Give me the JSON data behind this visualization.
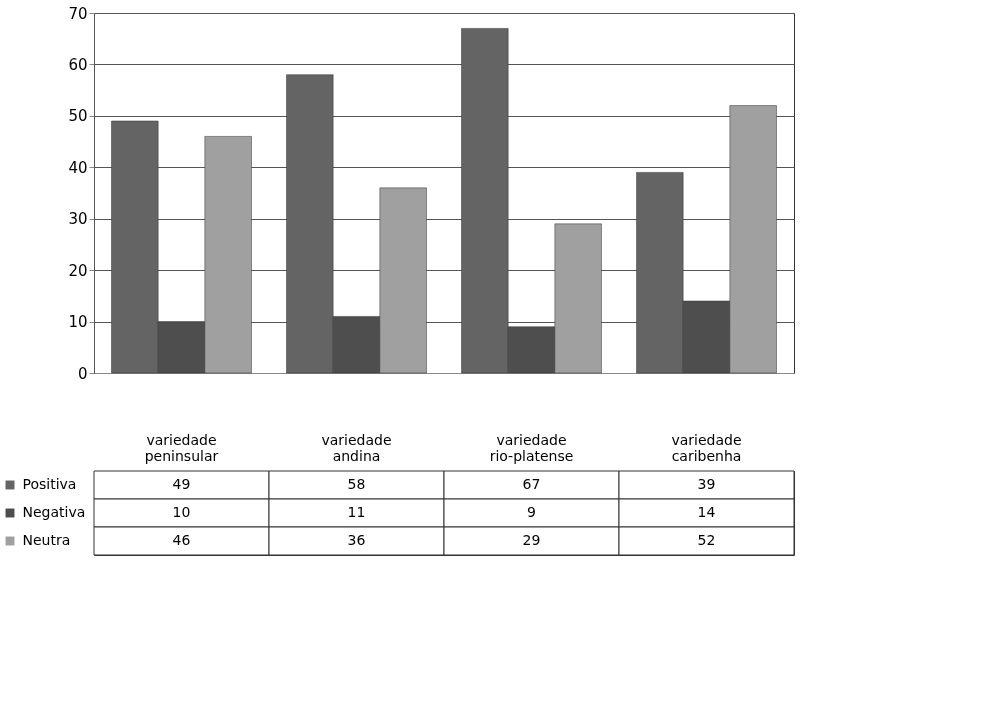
{
  "chart_data": {
    "type": "bar",
    "categories": [
      "variedade peninsular",
      "variedade andina",
      "variedade rio-platense",
      "variedade caribenha"
    ],
    "series": [
      {
        "name": "Positiva",
        "color": "#646464",
        "values": [
          49,
          58,
          67,
          39
        ]
      },
      {
        "name": "Negativa",
        "color": "#4e4e4e",
        "values": [
          10,
          11,
          9,
          14
        ]
      },
      {
        "name": "Neutra",
        "color": "#a0a0a0",
        "values": [
          46,
          36,
          29,
          52
        ]
      }
    ],
    "ylim": [
      0,
      70
    ],
    "yticks": [
      0,
      10,
      20,
      30,
      40,
      50,
      60,
      70
    ],
    "grid": "y",
    "legend": "bottom",
    "data_labels": true
  }
}
